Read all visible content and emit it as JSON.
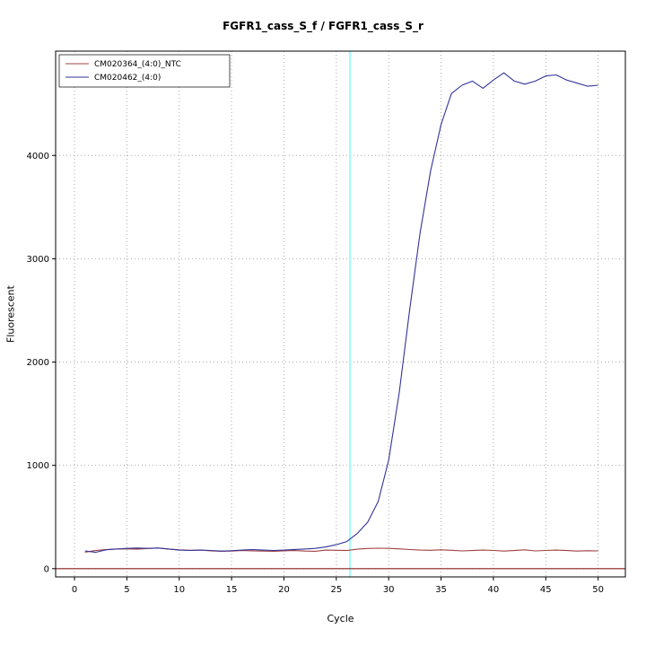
{
  "chart_data": {
    "type": "line",
    "title": "FGFR1_cass_S_f / FGFR1_cass_S_r",
    "xlabel": "Cycle",
    "ylabel": "Fluorescent",
    "xlim": [
      -1.8,
      52.6
    ],
    "ylim": [
      -80,
      5010
    ],
    "x_ticks": [
      0,
      5,
      10,
      15,
      20,
      25,
      30,
      35,
      40,
      45,
      50
    ],
    "y_ticks": [
      0,
      1000,
      2000,
      3000,
      4000
    ],
    "grid": true,
    "grid_color": "#aaaaaa",
    "threshold": {
      "x": 26.3,
      "color": "#80ffff"
    },
    "baseline": {
      "y": 0,
      "color": "#8b2222"
    },
    "legend_position": "top-left",
    "x": [
      1,
      2,
      3,
      4,
      5,
      6,
      7,
      8,
      9,
      10,
      11,
      12,
      13,
      14,
      15,
      16,
      17,
      18,
      19,
      20,
      21,
      22,
      23,
      24,
      25,
      26,
      27,
      28,
      29,
      30,
      31,
      32,
      33,
      34,
      35,
      36,
      37,
      38,
      39,
      40,
      41,
      42,
      43,
      44,
      45,
      46,
      47,
      48,
      49,
      50
    ],
    "series": [
      {
        "name": "CM020364_(4:0)_NTC",
        "color": "#a04040",
        "values": [
          160,
          175,
          185,
          190,
          192,
          188,
          195,
          200,
          190,
          182,
          178,
          180,
          172,
          168,
          170,
          175,
          172,
          170,
          168,
          172,
          175,
          170,
          168,
          180,
          178,
          175,
          188,
          195,
          198,
          196,
          192,
          185,
          180,
          178,
          182,
          178,
          172,
          175,
          180,
          176,
          170,
          175,
          182,
          172,
          176,
          180,
          175,
          170,
          174,
          172
        ]
      },
      {
        "name": "CM020462_(4:0)",
        "color": "#333399",
        "values": [
          172,
          158,
          182,
          190,
          196,
          200,
          196,
          200,
          190,
          180,
          176,
          180,
          176,
          170,
          174,
          180,
          184,
          180,
          176,
          180,
          186,
          190,
          196,
          210,
          232,
          262,
          340,
          450,
          650,
          1050,
          1700,
          2500,
          3250,
          3850,
          4300,
          4600,
          4680,
          4720,
          4650,
          4730,
          4800,
          4720,
          4690,
          4720,
          4770,
          4780,
          4730,
          4700,
          4670,
          4680
        ]
      }
    ]
  }
}
